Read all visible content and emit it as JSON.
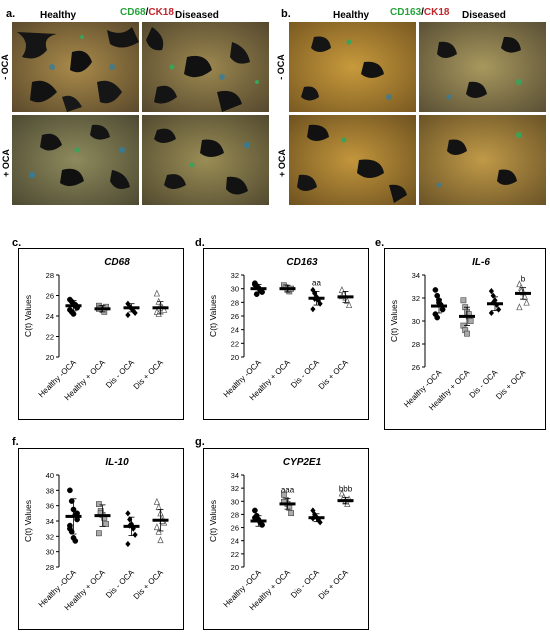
{
  "image_panels": [
    {
      "letter": "a.",
      "marker_green": "CD68",
      "slash": "/",
      "marker_red": "CK18",
      "col_left": "Healthy",
      "col_right": "Diseased",
      "row_top": "- OCA",
      "row_bottom": "+ OCA"
    },
    {
      "letter": "b.",
      "marker_green": "CD163",
      "slash": "/",
      "marker_red": "CK18",
      "col_left": "Healthy",
      "col_right": "Diseased",
      "row_top": "- OCA",
      "row_bottom": "+ OCA"
    }
  ],
  "chart_data": [
    {
      "type": "scatter",
      "letter": "c.",
      "title": "CD68",
      "ylabel": "C(t) Values",
      "ylim": [
        20,
        28
      ],
      "yticks": [
        20,
        22,
        24,
        26,
        28
      ],
      "categories": [
        "Healthy -OCA",
        "Healthy + OCA",
        "Dis - OCA",
        "Dis + OCA"
      ],
      "means": [
        25.0,
        24.7,
        24.8,
        24.8
      ],
      "errors": [
        0.5,
        0.3,
        0.4,
        0.6
      ],
      "annotations": [
        "",
        "",
        "",
        ""
      ],
      "points": [
        [
          25.6,
          25.4,
          25.2,
          25.0,
          24.8,
          24.6,
          24.4,
          24.2,
          25.1,
          24.9
        ],
        [
          25.0,
          24.8,
          24.6,
          24.4,
          24.9,
          24.7
        ],
        [
          25.2,
          24.9,
          24.7,
          24.5,
          24.3,
          24.1
        ],
        [
          26.2,
          25.4,
          25.0,
          24.8,
          24.6,
          24.4,
          24.2
        ]
      ]
    },
    {
      "type": "scatter",
      "letter": "d.",
      "title": "CD163",
      "ylabel": "C(t) Values",
      "ylim": [
        20,
        32
      ],
      "yticks": [
        20,
        22,
        24,
        26,
        28,
        30,
        32
      ],
      "categories": [
        "Healthy -OCA",
        "Healthy + OCA",
        "Dis - OCA",
        "Dis + OCA"
      ],
      "means": [
        30.0,
        30.0,
        28.6,
        28.8
      ],
      "errors": [
        0.6,
        0.5,
        1.0,
        0.8
      ],
      "annotations": [
        "",
        "",
        "aa",
        ""
      ],
      "points": [
        [
          30.8,
          30.4,
          30.1,
          29.8,
          29.5,
          30.6,
          29.2
        ],
        [
          30.5,
          30.2,
          29.9,
          29.6,
          30.0
        ],
        [
          29.8,
          29.3,
          28.8,
          28.3,
          27.8,
          27.0,
          28.5
        ],
        [
          29.8,
          29.2,
          28.7,
          28.2,
          27.6,
          28.9
        ]
      ]
    },
    {
      "type": "scatter",
      "letter": "e.",
      "title": "IL-6",
      "ylabel": "C(t) Values",
      "ylim": [
        26,
        34
      ],
      "yticks": [
        26,
        28,
        30,
        32,
        34
      ],
      "categories": [
        "Healthy -OCA",
        "Healthy + OCA",
        "Dis - OCA",
        "Dis + OCA"
      ],
      "means": [
        31.3,
        30.4,
        31.5,
        32.4
      ],
      "errors": [
        0.6,
        0.8,
        0.6,
        0.5
      ],
      "annotations": [
        "",
        "",
        "",
        "b"
      ],
      "points": [
        [
          32.7,
          32.2,
          31.8,
          31.4,
          31.0,
          30.6,
          30.3,
          31.6
        ],
        [
          31.8,
          31.2,
          30.8,
          30.4,
          30.0,
          29.6,
          29.2,
          28.9,
          30.6
        ],
        [
          32.6,
          32.2,
          31.8,
          31.4,
          31.0,
          30.7,
          31.6
        ],
        [
          33.2,
          32.9,
          32.5,
          32.1,
          31.6,
          31.2,
          32.6
        ]
      ]
    },
    {
      "type": "scatter",
      "letter": "f.",
      "title": "IL-10",
      "ylabel": "C(t) Values",
      "ylim": [
        28,
        40
      ],
      "yticks": [
        28,
        30,
        32,
        34,
        36,
        38,
        40
      ],
      "categories": [
        "Healthy -OCA",
        "Healthy + OCA",
        "Dis - OCA",
        "Dis + OCA"
      ],
      "means": [
        34.6,
        34.7,
        33.3,
        34.1
      ],
      "errors": [
        2.3,
        1.4,
        1.2,
        1.4
      ],
      "annotations": [
        "",
        "",
        "",
        ""
      ],
      "points": [
        [
          38.0,
          36.6,
          35.5,
          34.8,
          34.2,
          33.4,
          32.6,
          31.8,
          31.4,
          35.0,
          33.0
        ],
        [
          36.2,
          35.3,
          34.8,
          34.4,
          33.6,
          32.4,
          35.0
        ],
        [
          35.0,
          34.2,
          33.6,
          33.0,
          32.2,
          31.0,
          33.4
        ],
        [
          36.5,
          35.8,
          35.0,
          34.4,
          33.8,
          33.2,
          32.6,
          31.5,
          34.0
        ]
      ]
    },
    {
      "type": "scatter",
      "letter": "g.",
      "title": "CYP2E1",
      "ylabel": "C(t) Values",
      "ylim": [
        20,
        34
      ],
      "yticks": [
        20,
        22,
        24,
        26,
        28,
        30,
        32,
        34
      ],
      "categories": [
        "Healthy -OCA",
        "Healthy + OCA",
        "Dis - OCA",
        "Dis + OCA"
      ],
      "means": [
        27.0,
        29.6,
        27.5,
        30.1
      ],
      "errors": [
        0.8,
        0.8,
        0.6,
        0.5
      ],
      "annotations": [
        "",
        "aaa",
        "",
        "bbb"
      ],
      "points": [
        [
          28.6,
          27.8,
          27.2,
          26.8,
          26.4,
          27.5
        ],
        [
          31.0,
          30.2,
          29.6,
          29.0,
          28.2,
          29.9
        ],
        [
          28.6,
          28.0,
          27.6,
          27.2,
          26.8,
          27.4
        ],
        [
          31.2,
          30.6,
          30.1,
          29.6,
          30.3
        ]
      ]
    }
  ]
}
